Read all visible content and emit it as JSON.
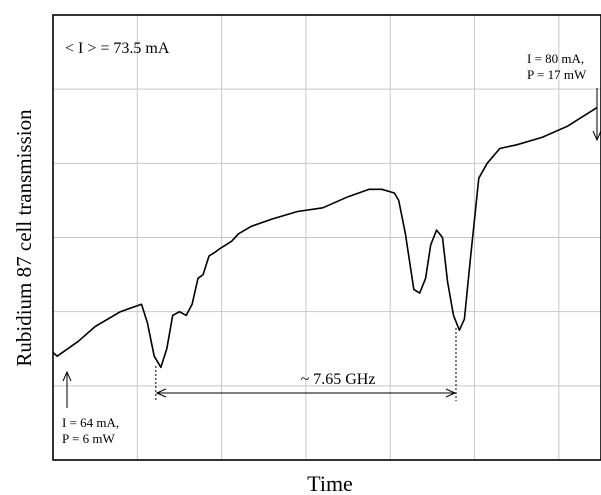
{
  "chart_data": {
    "type": "line",
    "xlabel": "Time",
    "ylabel": "Rubidium 87 cell transmission",
    "grid": true,
    "x_divisions": 6.5,
    "y_divisions": 6,
    "series": [
      {
        "x": [
          0,
          0.05,
          0.3,
          0.5,
          0.8,
          1.05,
          1.12,
          1.2,
          1.28,
          1.35,
          1.42,
          1.5,
          1.58,
          1.65,
          1.72,
          1.78,
          1.85,
          1.92,
          1.98,
          2.05,
          2.12,
          2.2,
          2.35,
          2.6,
          2.9,
          3.2,
          3.5,
          3.75,
          3.9,
          4.05,
          4.1,
          4.18,
          4.28,
          4.35,
          4.42,
          4.48,
          4.55,
          4.62,
          4.68,
          4.75,
          4.82,
          4.88,
          4.95,
          5.05,
          5.15,
          5.3,
          5.5,
          5.8,
          6.1,
          6.45
        ],
        "y": [
          1.45,
          1.4,
          1.6,
          1.8,
          2.0,
          2.1,
          1.85,
          1.4,
          1.25,
          1.5,
          1.95,
          2.0,
          1.95,
          2.1,
          2.45,
          2.5,
          2.75,
          2.8,
          2.85,
          2.9,
          2.95,
          3.05,
          3.15,
          3.25,
          3.35,
          3.4,
          3.55,
          3.65,
          3.65,
          3.6,
          3.5,
          3.05,
          2.3,
          2.25,
          2.45,
          2.9,
          3.1,
          3.0,
          2.4,
          1.95,
          1.75,
          1.9,
          2.7,
          3.8,
          4.0,
          4.2,
          4.25,
          4.35,
          4.5,
          4.75
        ]
      }
    ],
    "annotations": {
      "mean_current": "< I > = 73.5 mA",
      "start_current": "I = 64 mA,",
      "start_power": "P = 6 mW",
      "end_current": "I = 80 mA,",
      "end_power": "P = 17 mW",
      "separation": "~ 7.65 GHz"
    },
    "marker_x": [
      1.22,
      4.78
    ]
  }
}
